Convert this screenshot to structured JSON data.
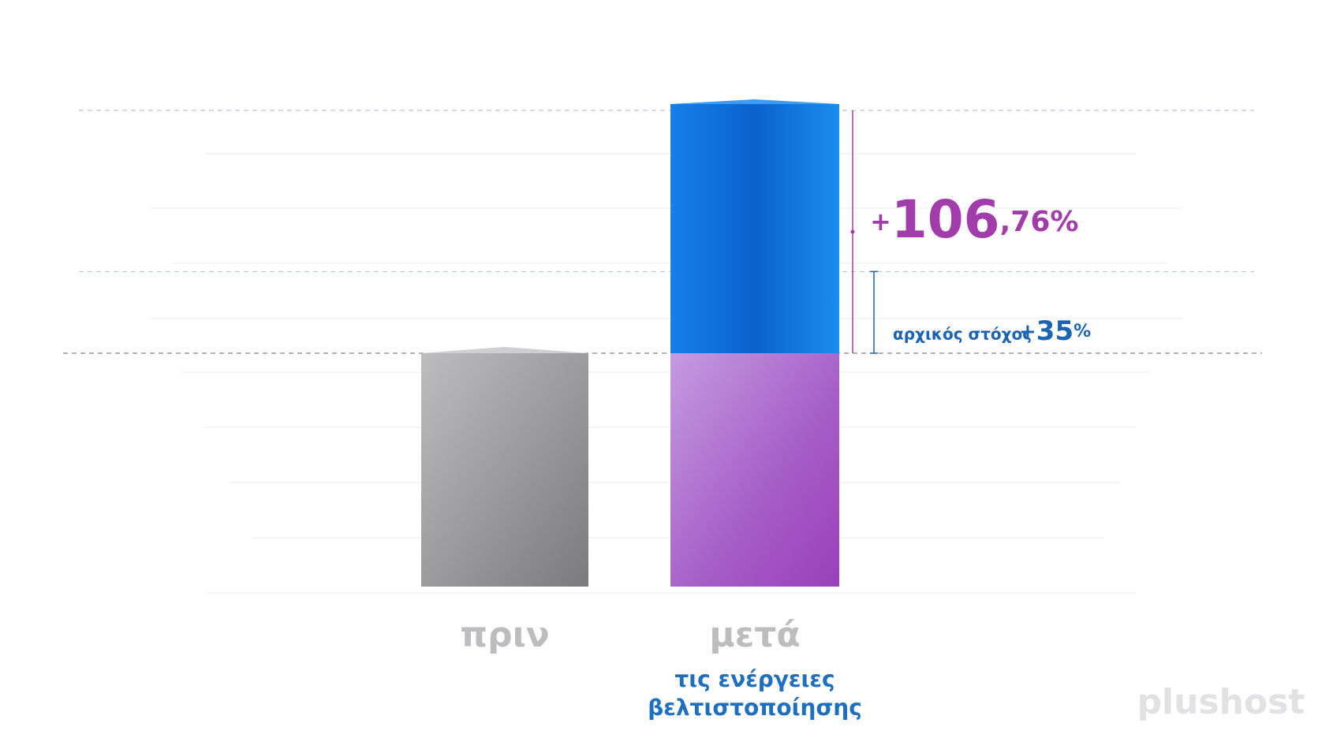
{
  "chart_data": {
    "type": "bar",
    "categories": [
      "πριν",
      "μετά"
    ],
    "category_caption": [
      "τις ενέργειες",
      "βελτιστοποίησης"
    ],
    "values": [
      100,
      206.76
    ],
    "ylim": [
      0,
      250
    ],
    "colors": {
      "before": "#9a9a9d",
      "base": "#a453c0",
      "gain": "#1477de"
    },
    "increase": {
      "label": "+106,76%",
      "value": 106.76,
      "color": "#a23cab"
    },
    "target": {
      "text": "αρχικός στόχος",
      "label": "+35%",
      "value": 35,
      "color": "#1d63b3"
    },
    "logo": "plushost"
  }
}
